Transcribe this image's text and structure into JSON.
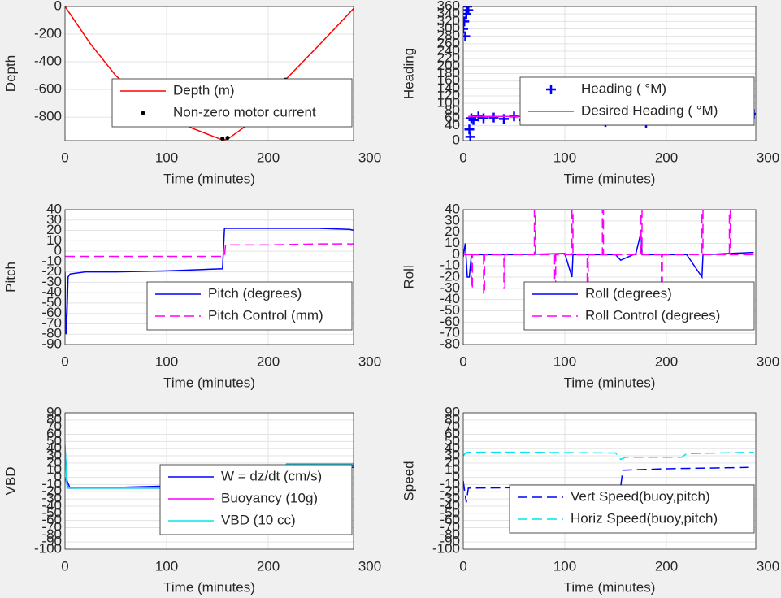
{
  "chart_data": [
    {
      "type": "line",
      "ylabel": "Depth",
      "xlabel": "Time (minutes)",
      "xlim": [
        0,
        284
      ],
      "xticks": [
        0,
        100,
        200,
        300
      ],
      "ylim": [
        -970,
        0
      ],
      "yticks": [
        0,
        -200,
        -400,
        -600,
        -800
      ],
      "grid": true,
      "series": [
        {
          "name": "Depth (m)",
          "color": "#ff0000",
          "style": "solid",
          "x": [
            0,
            25,
            50,
            75,
            100,
            125,
            155,
            160,
            190,
            217,
            250,
            286
          ],
          "y": [
            0,
            -270,
            -500,
            -660,
            -780,
            -880,
            -965,
            -960,
            -800,
            -530,
            -280,
            0
          ]
        },
        {
          "name": "Non-zero motor current",
          "color": "#000000",
          "style": "dot",
          "x": [
            155,
            160,
            217
          ],
          "y": [
            -955,
            -950,
            -530
          ]
        }
      ]
    },
    {
      "type": "line",
      "ylabel": "Heading",
      "xlabel": "Time (minutes)",
      "xlim": [
        0,
        288
      ],
      "xticks": [
        0,
        100,
        200,
        300
      ],
      "ylim": [
        0,
        360
      ],
      "yticks": [
        0,
        40,
        60,
        80,
        100,
        120,
        140,
        160,
        180,
        200,
        220,
        240,
        260,
        280,
        300,
        320,
        340,
        360
      ],
      "grid": true,
      "series": [
        {
          "name": "Heading ( °M)",
          "color": "#0000ff",
          "style": "plus",
          "x": [
            0,
            1,
            2,
            3,
            4,
            5,
            6,
            7,
            8,
            10,
            15,
            20,
            30,
            40,
            50,
            60,
            70,
            80,
            90,
            100,
            105,
            110,
            120,
            130,
            140,
            150,
            160,
            170,
            180,
            190,
            200,
            210,
            220,
            230,
            240,
            250,
            260,
            270,
            280,
            286
          ],
          "y": [
            300,
            320,
            280,
            340,
            360,
            350,
            30,
            10,
            60,
            55,
            65,
            60,
            62,
            58,
            65,
            55,
            70,
            60,
            58,
            65,
            85,
            60,
            62,
            55,
            50,
            60,
            62,
            58,
            48,
            65,
            60,
            62,
            70,
            58,
            60,
            62,
            68,
            60,
            62,
            72
          ]
        },
        {
          "name": "Desired Heading ( °M)",
          "color": "#ff00ff",
          "style": "solid",
          "x": [
            5,
            286
          ],
          "y": [
            65,
            65
          ]
        }
      ]
    },
    {
      "type": "line",
      "ylabel": "Pitch",
      "xlabel": "Time (minutes)",
      "xlim": [
        0,
        284
      ],
      "xticks": [
        0,
        100,
        200,
        300
      ],
      "ylim": [
        -90,
        40
      ],
      "yticks": [
        40,
        30,
        20,
        10,
        0,
        -10,
        -20,
        -30,
        -40,
        -50,
        -60,
        -70,
        -80,
        -90
      ],
      "grid": true,
      "series": [
        {
          "name": "Pitch (degrees)",
          "color": "#0000ff",
          "style": "solid",
          "x": [
            0,
            1,
            2,
            3,
            5,
            20,
            50,
            100,
            155,
            157,
            160,
            200,
            250,
            280,
            285,
            286
          ],
          "y": [
            -20,
            -80,
            -60,
            -25,
            -22,
            -20,
            -20,
            -19,
            -17,
            22,
            22,
            22,
            22,
            21,
            20,
            15
          ]
        },
        {
          "name": "Pitch Control (mm)",
          "color": "#ff00ff",
          "style": "dashed",
          "x": [
            0,
            2,
            157,
            158,
            200,
            250,
            286
          ],
          "y": [
            -5,
            -5,
            -5,
            6,
            6,
            7,
            7
          ]
        }
      ]
    },
    {
      "type": "line",
      "ylabel": "Roll",
      "xlabel": "Time (minutes)",
      "xlim": [
        0,
        288
      ],
      "xticks": [
        0,
        100,
        200,
        300
      ],
      "ylim": [
        -80,
        40
      ],
      "yticks": [
        40,
        30,
        20,
        10,
        0,
        -10,
        -20,
        -30,
        -40,
        -50,
        -60,
        -70,
        -80
      ],
      "grid": true,
      "series": [
        {
          "name": "Roll (degrees)",
          "color": "#0000ff",
          "style": "solid",
          "x": [
            0,
            2,
            4,
            6,
            8,
            50,
            100,
            107,
            108,
            150,
            155,
            160,
            170,
            175,
            176,
            220,
            235,
            236,
            286
          ],
          "y": [
            -2,
            10,
            -20,
            -20,
            0,
            0,
            1,
            -20,
            0,
            0,
            -5,
            -3,
            1,
            20,
            0,
            0,
            -20,
            0,
            2
          ]
        },
        {
          "name": "Roll Control (degrees)",
          "color": "#ff00ff",
          "style": "dashed",
          "x": [
            0,
            8,
            8,
            9,
            9,
            20,
            20,
            21,
            21,
            40,
            40,
            41,
            41,
            70,
            70,
            71,
            71,
            90,
            90,
            91,
            91,
            107,
            107,
            108,
            108,
            122,
            122,
            123,
            123,
            137,
            137,
            138,
            138,
            175,
            175,
            176,
            176,
            195,
            195,
            196,
            196,
            235,
            235,
            236,
            236,
            262,
            262,
            263,
            263,
            286
          ],
          "y": [
            0,
            0,
            -30,
            -30,
            0,
            0,
            -35,
            -35,
            0,
            0,
            -30,
            -30,
            0,
            0,
            40,
            40,
            0,
            0,
            -35,
            -35,
            0,
            0,
            40,
            40,
            0,
            0,
            -35,
            -35,
            0,
            0,
            40,
            40,
            0,
            0,
            40,
            40,
            0,
            0,
            -30,
            -30,
            0,
            0,
            40,
            40,
            0,
            0,
            40,
            40,
            0,
            0
          ]
        }
      ]
    },
    {
      "type": "line",
      "ylabel": "VBD",
      "xlabel": "Time (minutes)",
      "xlim": [
        0,
        284
      ],
      "xticks": [
        0,
        100,
        200,
        300
      ],
      "ylim": [
        -100,
        90
      ],
      "yticks": [
        90,
        80,
        70,
        60,
        50,
        40,
        30,
        20,
        10,
        0,
        -10,
        -20,
        -30,
        -40,
        -50,
        -60,
        -70,
        -80,
        -90,
        -100
      ],
      "grid": true,
      "series": [
        {
          "name": "W = dz/dt (cm/s)",
          "color": "#0000ff",
          "style": "solid",
          "x": [
            0,
            2,
            5,
            50,
            100,
            155,
            157,
            200,
            217,
            220,
            286
          ],
          "y": [
            40,
            -5,
            -15,
            -14,
            -12,
            -10,
            8,
            10,
            10,
            14,
            14
          ]
        },
        {
          "name": "Buoyancy (10g)",
          "color": "#ff00ff",
          "style": "solid",
          "x": [
            0,
            3,
            155,
            157,
            217,
            218,
            286
          ],
          "y": [
            0,
            -15,
            -15,
            12,
            12,
            17,
            17
          ]
        },
        {
          "name": "VBD (10 cc)",
          "color": "#00e5ee",
          "style": "solid",
          "x": [
            0,
            2,
            155,
            156,
            217,
            218,
            286
          ],
          "y": [
            45,
            -15,
            -15,
            15,
            15,
            19,
            19
          ]
        }
      ]
    },
    {
      "type": "line",
      "ylabel": "Speed",
      "xlabel": "Time (minutes)",
      "xlim": [
        0,
        288
      ],
      "xticks": [
        0,
        100,
        200,
        300
      ],
      "ylim": [
        -100,
        90
      ],
      "yticks": [
        90,
        80,
        70,
        60,
        50,
        40,
        30,
        20,
        10,
        0,
        -10,
        -20,
        -30,
        -40,
        -50,
        -60,
        -70,
        -80,
        -90,
        -100
      ],
      "grid": true,
      "series": [
        {
          "name": "Vert Speed(buoy,pitch)",
          "color": "#0000ff",
          "style": "dashed",
          "x": [
            0,
            3,
            5,
            155,
            157,
            200,
            286
          ],
          "y": [
            -5,
            -35,
            -15,
            -13,
            10,
            12,
            14
          ]
        },
        {
          "name": "Horiz Speed(buoy,pitch)",
          "color": "#00e5ee",
          "style": "dashed",
          "x": [
            0,
            3,
            50,
            150,
            155,
            160,
            215,
            220,
            286
          ],
          "y": [
            30,
            35,
            35,
            34,
            25,
            28,
            28,
            33,
            35
          ]
        }
      ]
    }
  ]
}
